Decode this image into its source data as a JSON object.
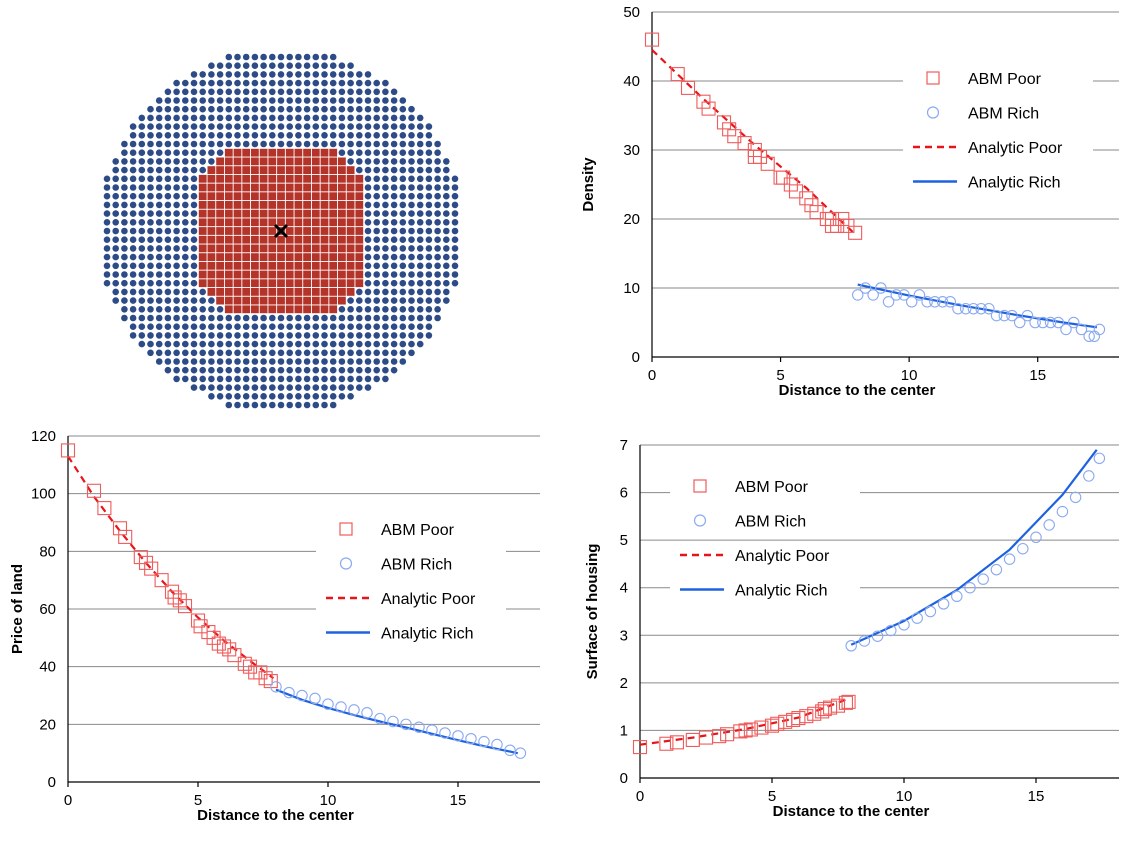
{
  "colors": {
    "poor_marker": "#ee5c5c",
    "rich_marker": "#8aaaf0",
    "poor_line": "#e8141a",
    "rich_line": "#1e62e0",
    "grid_inner": "#b5342a",
    "grid_outer": "#2d4b87",
    "center_mark": "#000000"
  },
  "city_grid": {
    "type": "dot-grid",
    "inner_marker": "square",
    "outer_marker": "circle",
    "center_marker": "x-icon"
  },
  "chart_data": [
    {
      "id": "density",
      "type": "scatter",
      "xlabel": "Distance to the center",
      "ylabel": "Density",
      "xlim": [
        0,
        17.5
      ],
      "ylim": [
        0,
        50
      ],
      "xticks": [
        "0",
        "5",
        "10",
        "15"
      ],
      "yticks": [
        "0",
        "10",
        "20",
        "30",
        "40",
        "50"
      ],
      "grid": "horizontal",
      "legend": [
        {
          "label": "ABM Poor",
          "kind": "marker-square",
          "series": "poor"
        },
        {
          "label": "ABM Rich",
          "kind": "marker-circle",
          "series": "rich"
        },
        {
          "label": "Analytic Poor",
          "kind": "dashed-line",
          "series": "poor"
        },
        {
          "label": "Analytic Rich",
          "kind": "solid-line",
          "series": "rich"
        }
      ],
      "series": [
        {
          "name": "ABM Poor",
          "kind": "scatter",
          "marker": "square",
          "points": [
            [
              0,
              46
            ],
            [
              1,
              41
            ],
            [
              1.4,
              39
            ],
            [
              2,
              37
            ],
            [
              2.2,
              36
            ],
            [
              2.8,
              34
            ],
            [
              3,
              33
            ],
            [
              3.2,
              32
            ],
            [
              3.6,
              31
            ],
            [
              4,
              30
            ],
            [
              4,
              29
            ],
            [
              4.2,
              29
            ],
            [
              4.5,
              28
            ],
            [
              5,
              26
            ],
            [
              5.1,
              26
            ],
            [
              5.4,
              25
            ],
            [
              5.6,
              24
            ],
            [
              6,
              23
            ],
            [
              6.2,
              22
            ],
            [
              6.4,
              21
            ],
            [
              6.8,
              20
            ],
            [
              7,
              20
            ],
            [
              7,
              19
            ],
            [
              7.2,
              19
            ],
            [
              7.4,
              20
            ],
            [
              7.6,
              19
            ],
            [
              7.9,
              18
            ]
          ]
        },
        {
          "name": "ABM Rich",
          "kind": "scatter",
          "marker": "circle",
          "points": [
            [
              8,
              9
            ],
            [
              8.3,
              10
            ],
            [
              8.6,
              9
            ],
            [
              8.9,
              10
            ],
            [
              9.2,
              8
            ],
            [
              9.5,
              9
            ],
            [
              9.8,
              9
            ],
            [
              10.1,
              8
            ],
            [
              10.4,
              9
            ],
            [
              10.7,
              8
            ],
            [
              11,
              8
            ],
            [
              11.3,
              8
            ],
            [
              11.6,
              8
            ],
            [
              11.9,
              7
            ],
            [
              12.2,
              7
            ],
            [
              12.5,
              7
            ],
            [
              12.8,
              7
            ],
            [
              13.1,
              7
            ],
            [
              13.4,
              6
            ],
            [
              13.7,
              6
            ],
            [
              14,
              6
            ],
            [
              14.3,
              5
            ],
            [
              14.6,
              6
            ],
            [
              14.9,
              5
            ],
            [
              15.2,
              5
            ],
            [
              15.5,
              5
            ],
            [
              15.8,
              5
            ],
            [
              16.1,
              4
            ],
            [
              16.4,
              5
            ],
            [
              16.7,
              4
            ],
            [
              17,
              3
            ],
            [
              17.2,
              3
            ],
            [
              17.4,
              4
            ]
          ]
        },
        {
          "name": "Analytic Poor",
          "kind": "line",
          "style": "dashed",
          "points": [
            [
              0,
              44.5
            ],
            [
              2,
              37.4
            ],
            [
              4,
              30.7
            ],
            [
              6,
              24.5
            ],
            [
              7.9,
              17.8
            ]
          ]
        },
        {
          "name": "Analytic Rich",
          "kind": "line",
          "style": "solid",
          "points": [
            [
              8,
              10.5
            ],
            [
              10,
              8.9
            ],
            [
              12,
              7.5
            ],
            [
              14,
              6.2
            ],
            [
              16,
              5.0
            ],
            [
              17.3,
              4.3
            ]
          ]
        }
      ]
    },
    {
      "id": "price",
      "type": "scatter",
      "xlabel": "Distance to the center",
      "ylabel": "Price of land",
      "xlim": [
        0,
        17.5
      ],
      "ylim": [
        0,
        120
      ],
      "xticks": [
        "0",
        "5",
        "10",
        "15"
      ],
      "yticks": [
        "0",
        "20",
        "40",
        "60",
        "80",
        "100",
        "120"
      ],
      "grid": "horizontal",
      "legend": [
        {
          "label": "ABM Poor",
          "kind": "marker-square",
          "series": "poor"
        },
        {
          "label": "ABM Rich",
          "kind": "marker-circle",
          "series": "rich"
        },
        {
          "label": "Analytic Poor",
          "kind": "dashed-line",
          "series": "poor"
        },
        {
          "label": "Analytic Rich",
          "kind": "solid-line",
          "series": "rich"
        }
      ],
      "series": [
        {
          "name": "ABM Poor",
          "kind": "scatter",
          "marker": "square",
          "points": [
            [
              0,
              115
            ],
            [
              1,
              101
            ],
            [
              1.4,
              95
            ],
            [
              2,
              88
            ],
            [
              2.2,
              85
            ],
            [
              2.8,
              78
            ],
            [
              3,
              76
            ],
            [
              3.2,
              74
            ],
            [
              3.6,
              70
            ],
            [
              4,
              66
            ],
            [
              4.1,
              64
            ],
            [
              4.3,
              63
            ],
            [
              4.5,
              61
            ],
            [
              5,
              56
            ],
            [
              5.1,
              54
            ],
            [
              5.4,
              52
            ],
            [
              5.6,
              50
            ],
            [
              5.8,
              48
            ],
            [
              6,
              47
            ],
            [
              6.2,
              46
            ],
            [
              6.4,
              44
            ],
            [
              6.8,
              41
            ],
            [
              7,
              40
            ],
            [
              7.2,
              38
            ],
            [
              7.4,
              38
            ],
            [
              7.6,
              36
            ],
            [
              7.8,
              35
            ]
          ]
        },
        {
          "name": "ABM Rich",
          "kind": "scatter",
          "marker": "circle",
          "points": [
            [
              8,
              33
            ],
            [
              8.5,
              31
            ],
            [
              9,
              30
            ],
            [
              9.5,
              29
            ],
            [
              10,
              27
            ],
            [
              10.5,
              26
            ],
            [
              11,
              25
            ],
            [
              11.5,
              24
            ],
            [
              12,
              22
            ],
            [
              12.5,
              21
            ],
            [
              13,
              20
            ],
            [
              13.5,
              19
            ],
            [
              14,
              18
            ],
            [
              14.5,
              17
            ],
            [
              15,
              16
            ],
            [
              15.5,
              15
            ],
            [
              16,
              14
            ],
            [
              16.5,
              13
            ],
            [
              17,
              11
            ],
            [
              17.4,
              10
            ]
          ]
        },
        {
          "name": "Analytic Poor",
          "kind": "line",
          "style": "dashed",
          "points": [
            [
              0,
              113
            ],
            [
              1,
              99
            ],
            [
              2,
              87
            ],
            [
              3,
              76
            ],
            [
              4,
              66
            ],
            [
              5,
              57
            ],
            [
              6,
              49
            ],
            [
              7,
              42
            ],
            [
              7.9,
              36
            ]
          ]
        },
        {
          "name": "Analytic Rich",
          "kind": "line",
          "style": "solid",
          "points": [
            [
              8,
              32
            ],
            [
              9,
              28.5
            ],
            [
              10,
              25.7
            ],
            [
              11,
              23.2
            ],
            [
              12,
              21
            ],
            [
              13,
              18.9
            ],
            [
              14,
              16.7
            ],
            [
              15,
              14.5
            ],
            [
              16,
              12.4
            ],
            [
              17.3,
              10
            ]
          ]
        }
      ]
    },
    {
      "id": "surface",
      "type": "scatter",
      "xlabel": "Distance to the center",
      "ylabel": "Surface of housing",
      "xlim": [
        0,
        17.5
      ],
      "ylim": [
        0,
        7
      ],
      "xticks": [
        "0",
        "5",
        "10",
        "15"
      ],
      "yticks": [
        "0",
        "1",
        "2",
        "3",
        "4",
        "5",
        "6",
        "7"
      ],
      "grid": "horizontal",
      "legend": [
        {
          "label": "ABM Poor",
          "kind": "marker-square",
          "series": "poor"
        },
        {
          "label": "ABM Rich",
          "kind": "marker-circle",
          "series": "rich"
        },
        {
          "label": "Analytic Poor",
          "kind": "dashed-line",
          "series": "poor"
        },
        {
          "label": "Analytic Rich",
          "kind": "solid-line",
          "series": "rich"
        }
      ],
      "series": [
        {
          "name": "ABM Poor",
          "kind": "scatter",
          "marker": "square",
          "points": [
            [
              0,
              0.65
            ],
            [
              1,
              0.72
            ],
            [
              1.4,
              0.75
            ],
            [
              2,
              0.8
            ],
            [
              2.5,
              0.85
            ],
            [
              3,
              0.88
            ],
            [
              3.3,
              0.92
            ],
            [
              3.8,
              0.98
            ],
            [
              4,
              1.0
            ],
            [
              4.2,
              1.02
            ],
            [
              4.6,
              1.06
            ],
            [
              5,
              1.1
            ],
            [
              5.2,
              1.14
            ],
            [
              5.5,
              1.18
            ],
            [
              5.8,
              1.22
            ],
            [
              6,
              1.26
            ],
            [
              6.3,
              1.3
            ],
            [
              6.6,
              1.35
            ],
            [
              6.9,
              1.4
            ],
            [
              7,
              1.45
            ],
            [
              7.2,
              1.48
            ],
            [
              7.5,
              1.52
            ],
            [
              7.8,
              1.58
            ],
            [
              7.9,
              1.6
            ]
          ]
        },
        {
          "name": "ABM Rich",
          "kind": "scatter",
          "marker": "circle",
          "points": [
            [
              8,
              2.78
            ],
            [
              8.5,
              2.88
            ],
            [
              9,
              2.98
            ],
            [
              9.5,
              3.1
            ],
            [
              10,
              3.22
            ],
            [
              10.5,
              3.36
            ],
            [
              11,
              3.5
            ],
            [
              11.5,
              3.66
            ],
            [
              12,
              3.82
            ],
            [
              12.5,
              4.0
            ],
            [
              13,
              4.18
            ],
            [
              13.5,
              4.38
            ],
            [
              14,
              4.6
            ],
            [
              14.5,
              4.82
            ],
            [
              15,
              5.06
            ],
            [
              15.5,
              5.32
            ],
            [
              16,
              5.6
            ],
            [
              16.5,
              5.9
            ],
            [
              17,
              6.35
            ],
            [
              17.4,
              6.72
            ]
          ]
        },
        {
          "name": "Analytic Poor",
          "kind": "line",
          "style": "dashed",
          "points": [
            [
              0,
              0.7
            ],
            [
              2,
              0.85
            ],
            [
              4,
              1.03
            ],
            [
              6,
              1.27
            ],
            [
              7.9,
              1.67
            ]
          ]
        },
        {
          "name": "Analytic Rich",
          "kind": "line",
          "style": "solid",
          "points": [
            [
              8,
              2.8
            ],
            [
              10,
              3.3
            ],
            [
              12,
              3.95
            ],
            [
              14,
              4.8
            ],
            [
              16,
              5.95
            ],
            [
              17.3,
              6.9
            ]
          ]
        }
      ]
    }
  ]
}
